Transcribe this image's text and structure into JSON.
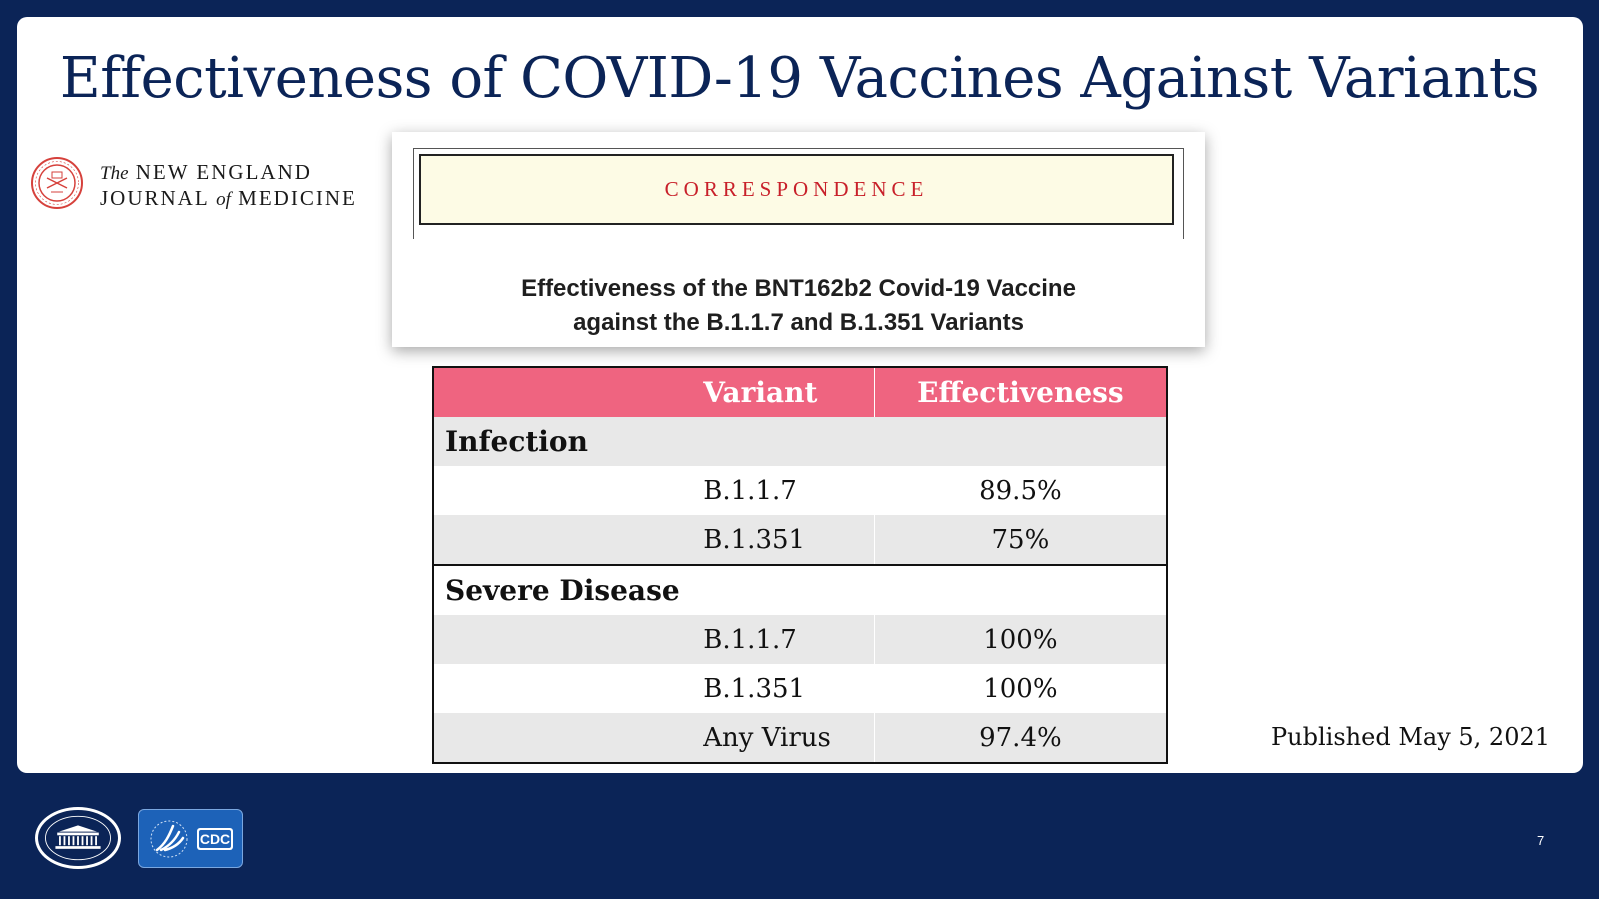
{
  "slide": {
    "title": "Effectiveness of COVID-19 Vaccines Against Variants",
    "page_number": "7",
    "published": "Published May 5, 2021"
  },
  "journal": {
    "line1_prefix": "The",
    "line1_main": "NEW ENGLAND",
    "line2_a": "JOURNAL",
    "line2_of": "of",
    "line2_b": "MEDICINE"
  },
  "card": {
    "section": "CORRESPONDENCE",
    "article_title_line1": "Effectiveness of the BNT162b2 Covid-19 Vaccine",
    "article_title_line2": "against the B.1.1.7 and B.1.351 Variants"
  },
  "table": {
    "headers": [
      "",
      "Variant",
      "Effectiveness"
    ],
    "sections": [
      {
        "label": "Infection",
        "rows": [
          {
            "variant": "B.1.1.7",
            "effectiveness": "89.5%"
          },
          {
            "variant": "B.1.351",
            "effectiveness": "75%"
          }
        ]
      },
      {
        "label": "Severe Disease",
        "rows": [
          {
            "variant": "B.1.1.7",
            "effectiveness": "100%"
          },
          {
            "variant": "B.1.351",
            "effectiveness": "100%"
          },
          {
            "variant": "Any Virus",
            "effectiveness": "97.4%"
          }
        ]
      }
    ]
  },
  "footer": {
    "cdc_text": "CDC"
  },
  "colors": {
    "background": "#0b2457",
    "header_row": "#ef6480",
    "correspondence_red": "#c8202a",
    "banner_fill": "#fdfbe5",
    "grey_row": "#e8e8e8"
  },
  "icons": {
    "journal_seal": "nejm-seal-icon",
    "white_house": "white-house-icon",
    "hhs_cdc": "hhs-cdc-icon"
  }
}
